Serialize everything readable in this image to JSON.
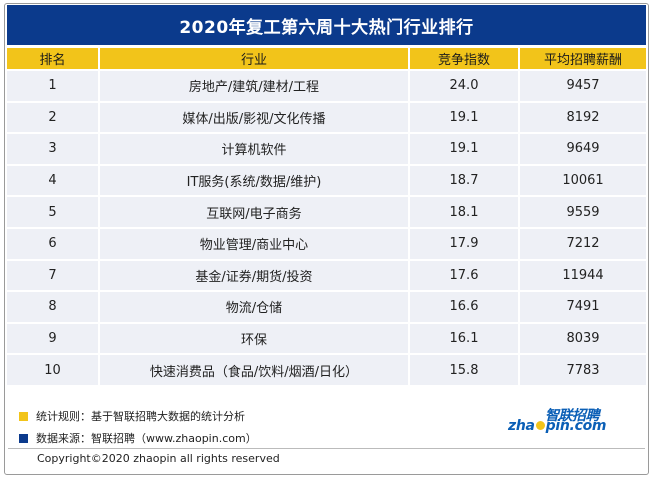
{
  "title": "2020年复工第六周十大热门行业排行",
  "headers": [
    "排名",
    "行业",
    "竞争指数",
    "平均招聘薪酬"
  ],
  "rows": [
    {
      "rank": "1",
      "industry": "房地产/建筑/建材/工程",
      "index": "24.0",
      "salary": "9457"
    },
    {
      "rank": "2",
      "industry": "媒体/出版/影视/文化传播",
      "index": "19.1",
      "salary": "8192"
    },
    {
      "rank": "3",
      "industry": "计算机软件",
      "index": "19.1",
      "salary": "9649"
    },
    {
      "rank": "4",
      "industry": "IT服务(系统/数据/维护)",
      "index": "18.7",
      "salary": "10061"
    },
    {
      "rank": "5",
      "industry": "互联网/电子商务",
      "index": "18.1",
      "salary": "9559"
    },
    {
      "rank": "6",
      "industry": "物业管理/商业中心",
      "index": "17.9",
      "salary": "7212"
    },
    {
      "rank": "7",
      "industry": "基金/证券/期货/投资",
      "index": "17.6",
      "salary": "11944"
    },
    {
      "rank": "8",
      "industry": "物流/仓储",
      "index": "16.6",
      "salary": "7491"
    },
    {
      "rank": "9",
      "industry": "环保",
      "index": "16.1",
      "salary": "8039"
    },
    {
      "rank": "10",
      "industry": "快速消费品（食品/饮料/烟酒/日化）",
      "index": "15.8",
      "salary": "7783"
    }
  ],
  "notes": {
    "rule": "统计规则：基于智联招聘大数据的统计分析",
    "source": "数据来源：智联招聘（www.zhaopin.com）",
    "rule_color": "#f2c41a",
    "source_color": "#0b3a8c"
  },
  "logo": {
    "cn": "智联招聘",
    "en_left": "zha",
    "en_right": "pin.com"
  },
  "copyright": "Copyright©2020 zhaopin all rights reserved"
}
